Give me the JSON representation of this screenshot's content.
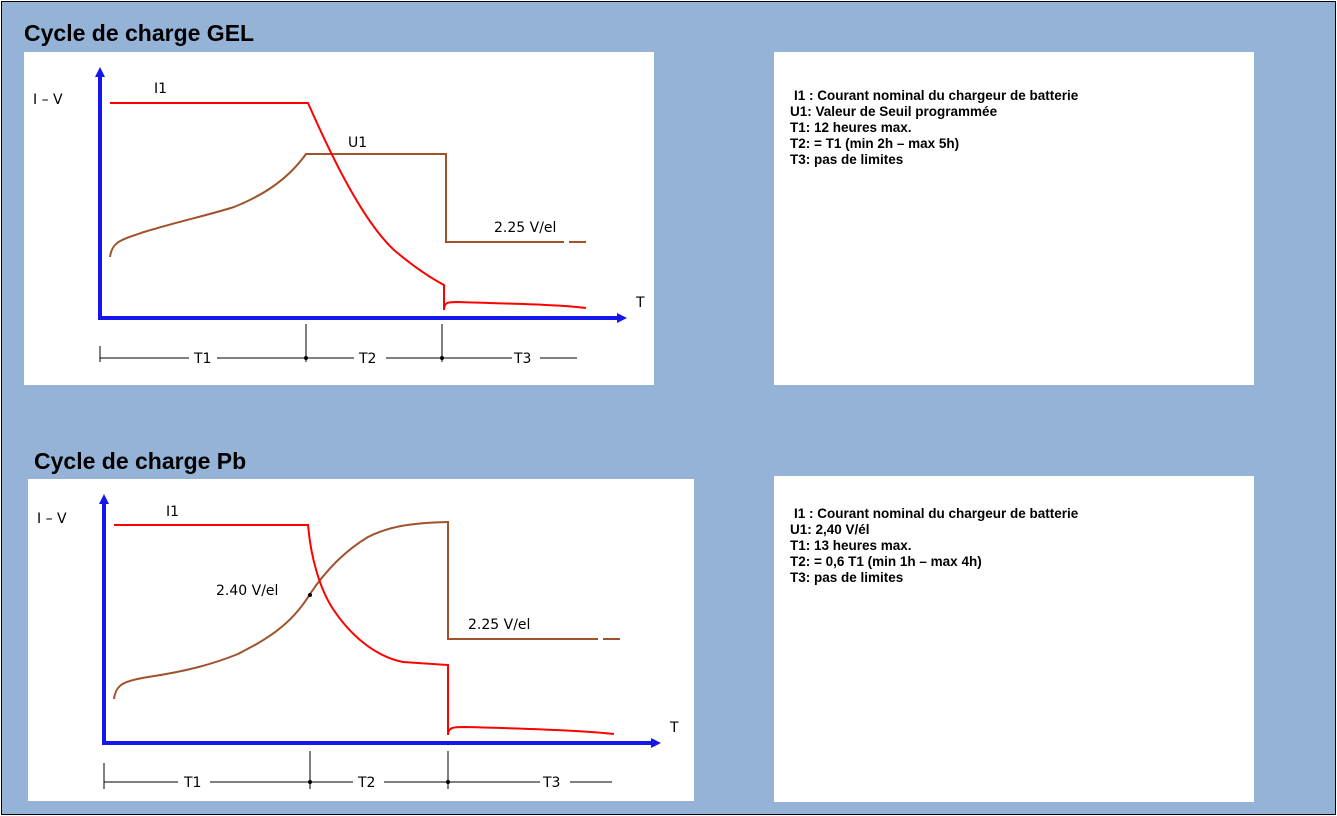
{
  "colors": {
    "background": "#95b3d7",
    "axis": "#1515ee",
    "current": "#ff0000",
    "voltage": "#a0522d"
  },
  "gel": {
    "heading": "Cycle de charge GEL",
    "axis_y_label": "I – V",
    "axis_x_label": "T",
    "curve_i_label": "I1",
    "curve_u_label": "U1",
    "voltage_float_label": "2.25 V/el",
    "phase_labels": [
      "T1",
      "T2",
      "T3"
    ],
    "legend": [
      "I1 :  Courant nominal du chargeur de batterie",
      "U1:  Valeur de Seuil programmée",
      "T1:  12 heures max.",
      "T2: = T1 (min 2h – max 5h)",
      "T3:  pas de limites"
    ]
  },
  "pb": {
    "heading": "Cycle de charge Pb",
    "axis_y_label": "I  –  V",
    "axis_x_label": "T",
    "curve_i_label": "I1",
    "voltage_threshold_label": "2.40  V/el",
    "voltage_float_label": "2.25  V/el",
    "phase_labels": [
      "T1",
      "T2",
      "T3"
    ],
    "legend": [
      "I1 :  Courant nominal du chargeur de batterie",
      "U1:  2,40 V/él",
      "T1:  13 heures max.",
      "T2: = 0,6 T1 (min 1h – max 4h)",
      "T3:  pas de limites"
    ]
  }
}
